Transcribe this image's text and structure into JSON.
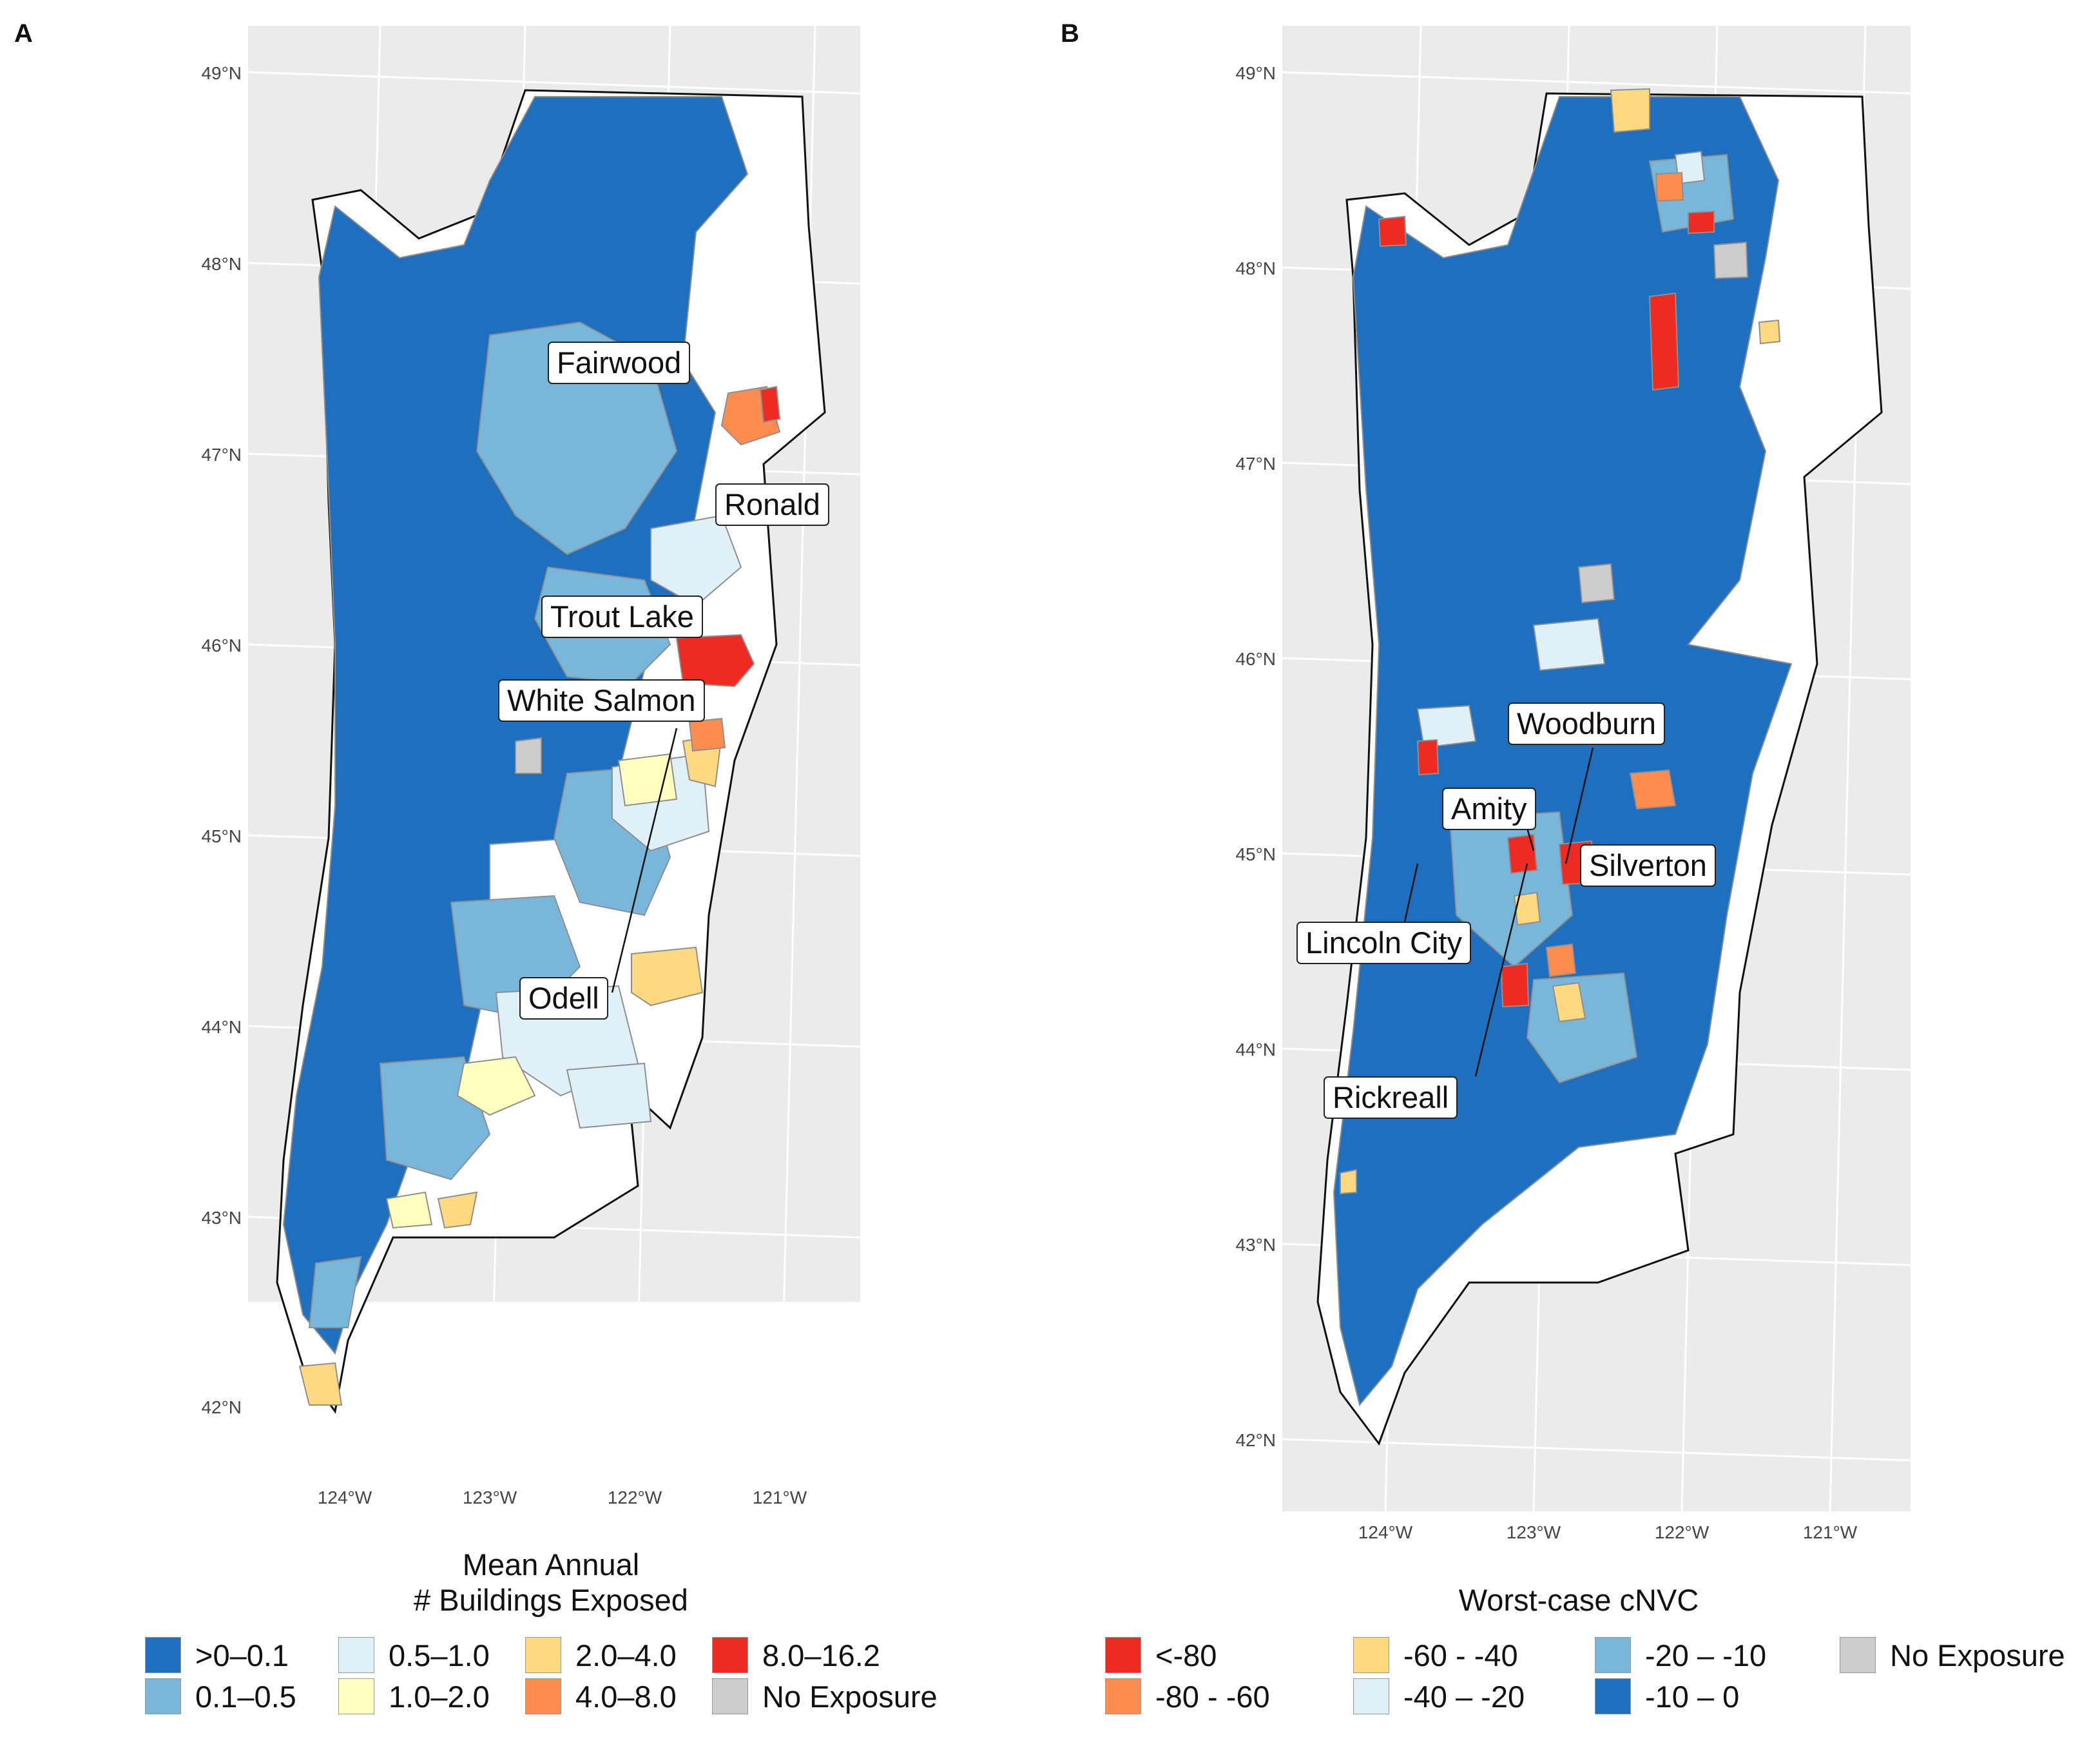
{
  "panels": [
    {
      "letter": "A",
      "lat_ticks": [
        "49°N",
        "48°N",
        "47°N",
        "46°N",
        "45°N",
        "44°N",
        "43°N",
        "42°N"
      ],
      "lon_ticks": [
        "124°W",
        "123°W",
        "122°W",
        "121°W"
      ],
      "callouts": [
        "Fairwood",
        "Ronald",
        "Trout Lake",
        "White Salmon",
        "Odell"
      ],
      "legend": {
        "title_line1": "Mean Annual",
        "title_line2": "# Buildings Exposed",
        "items": [
          {
            "label": ">0–0.1",
            "color": "#1f6fbf"
          },
          {
            "label": "0.1–0.5",
            "color": "#78b6da"
          },
          {
            "label": "0.5–1.0",
            "color": "#dff1f7"
          },
          {
            "label": "1.0–2.0",
            "color": "#ffffbf"
          },
          {
            "label": "2.0–4.0",
            "color": "#fed97f"
          },
          {
            "label": "4.0–8.0",
            "color": "#fc8d4f"
          },
          {
            "label": "8.0–16.2",
            "color": "#ee2b22"
          },
          {
            "label": "No Exposure",
            "color": "#cccccc"
          }
        ]
      }
    },
    {
      "letter": "B",
      "lat_ticks": [
        "49°N",
        "48°N",
        "47°N",
        "46°N",
        "45°N",
        "44°N",
        "43°N",
        "42°N"
      ],
      "lon_ticks": [
        "124°W",
        "123°W",
        "122°W",
        "121°W"
      ],
      "callouts": [
        "Woodburn",
        "Amity",
        "Silverton",
        "Lincoln City",
        "Rickreall"
      ],
      "legend": {
        "title": "Worst-case cNVC",
        "items": [
          {
            "label": "<-80",
            "color": "#ee2b22"
          },
          {
            "label": "-80 - -60",
            "color": "#fc8d4f"
          },
          {
            "label": "-60 - -40",
            "color": "#fed97f"
          },
          {
            "label": "-40 – -20",
            "color": "#dff1f7"
          },
          {
            "label": "-20 – -10",
            "color": "#78b6da"
          },
          {
            "label": "-10 – 0",
            "color": "#1f6fbf"
          },
          {
            "label": "No Exposure",
            "color": "#cccccc"
          }
        ]
      }
    }
  ],
  "colors": {
    "panel_bg": "#ebebeb",
    "grid": "#ffffff",
    "border": "#111111",
    "tract_edge": "#8f8f8f"
  }
}
